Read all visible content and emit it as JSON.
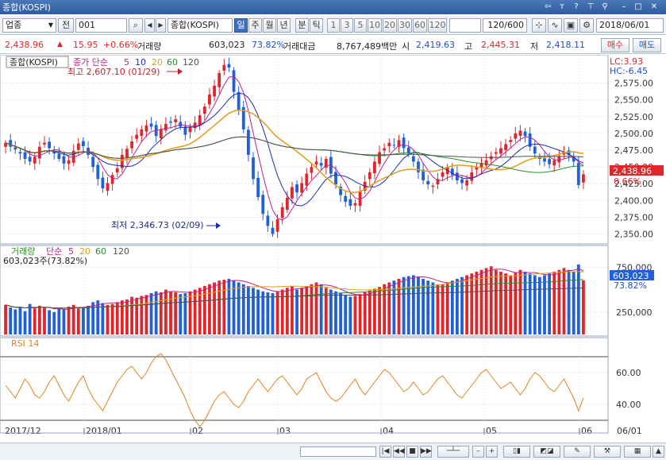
{
  "window": {
    "title": "종합(KOSPI)"
  },
  "toolbar": {
    "market": "업종",
    "prev_label": "전",
    "code": "001",
    "name": "종합(KOSPI)",
    "periods": [
      "일",
      "주",
      "월",
      "년",
      "분",
      "틱"
    ],
    "intervals": [
      "1",
      "3",
      "5",
      "10",
      "20",
      "30",
      "60",
      "120"
    ],
    "count": "120/600",
    "date": "2018/06/01"
  },
  "quote": {
    "price": "2,438.96",
    "change": "15.95",
    "change_pct": "+0.66%",
    "volume_label": "거래량",
    "volume": "603,023",
    "volume_pct": "73.82%",
    "amount_label": "거래대금",
    "amount": "8,767,489백만",
    "open_label": "시",
    "open": "2,419.63",
    "high_label": "고",
    "high": "2,445.31",
    "low_label": "저",
    "low": "2,418.11"
  },
  "side_buttons": {
    "buy": "매수",
    "sell": "매도"
  },
  "price_panel": {
    "name_tag": "종합(KOSPI)",
    "ma_label": "종가 단순",
    "ma_periods": [
      "5",
      "10",
      "20",
      "60",
      "120"
    ],
    "high_note": "최고 2,607.10 (01/29)",
    "low_note": "최저 2,346.73 (02/09)",
    "lc": "LC:3.93",
    "hc": "HC:-6.45",
    "last": "2,438.96",
    "last_pct": "0.66%",
    "y_ticks": [
      "2,575.00",
      "2,550.00",
      "2,525.00",
      "2,500.00",
      "2,475.00",
      "2,450.00",
      "2,425.00",
      "2,400.00",
      "2,375.00",
      "2,350.00"
    ]
  },
  "volume_panel": {
    "label": "거래량",
    "ma_label": "단순",
    "ma_periods": [
      "5",
      "20",
      "60",
      "120"
    ],
    "current": "603,023주(73.82%)",
    "last": "603,023",
    "last_pct": "73.82%",
    "y_ticks": [
      "750,000",
      "250,000"
    ]
  },
  "rsi_panel": {
    "label": "RSI 14",
    "y_ticks": [
      "60.00",
      "40.00"
    ]
  },
  "x_axis": [
    "2017/12",
    "2018/01",
    "02",
    "03",
    "04",
    "05",
    "06",
    "06/01"
  ],
  "colors": {
    "up": "#e0262b",
    "down": "#2060d8",
    "ma5": "#c0208c",
    "ma10": "#1a2fb8",
    "ma20": "#e0a020",
    "ma60": "#2a8a2a",
    "ma120": "#505050",
    "rsi": "#e08020"
  },
  "chart_data": {
    "type": "candlestick",
    "dates_range": [
      "2017/12",
      "2018/06/01"
    ],
    "ylim": [
      2340,
      2610
    ],
    "close": [
      2486,
      2480,
      2476,
      2470,
      2462,
      2458,
      2465,
      2480,
      2486,
      2478,
      2470,
      2462,
      2455,
      2460,
      2474,
      2485,
      2481,
      2468,
      2450,
      2432,
      2418,
      2426,
      2438,
      2448,
      2468,
      2477,
      2488,
      2498,
      2506,
      2512,
      2510,
      2496,
      2506,
      2514,
      2516,
      2521,
      2510,
      2498,
      2509,
      2516,
      2527,
      2540,
      2558,
      2571,
      2590,
      2602,
      2598,
      2562,
      2535,
      2506,
      2468,
      2432,
      2405,
      2380,
      2362,
      2350,
      2372,
      2390,
      2404,
      2420,
      2412,
      2426,
      2440,
      2450,
      2458,
      2452,
      2462,
      2440,
      2424,
      2408,
      2398,
      2392,
      2396,
      2414,
      2428,
      2442,
      2458,
      2472,
      2478,
      2486,
      2482,
      2490,
      2478,
      2470,
      2458,
      2442,
      2430,
      2424,
      2422,
      2432,
      2442,
      2450,
      2438,
      2430,
      2426,
      2430,
      2442,
      2450,
      2456,
      2460,
      2466,
      2472,
      2478,
      2484,
      2490,
      2500,
      2504,
      2496,
      2480,
      2470,
      2462,
      2458,
      2454,
      2460,
      2466,
      2472,
      2468,
      2458,
      2423,
      2439
    ],
    "volume": [
      330,
      300,
      280,
      310,
      260,
      340,
      290,
      320,
      300,
      270,
      250,
      300,
      280,
      310,
      330,
      290,
      300,
      320,
      360,
      380,
      350,
      330,
      340,
      360,
      380,
      390,
      420,
      410,
      430,
      440,
      460,
      480,
      470,
      500,
      480,
      470,
      450,
      460,
      480,
      500,
      520,
      540,
      560,
      580,
      600,
      610,
      620,
      600,
      580,
      560,
      540,
      520,
      500,
      480,
      470,
      460,
      480,
      500,
      520,
      540,
      500,
      520,
      540,
      560,
      580,
      560,
      520,
      500,
      480,
      460,
      440,
      420,
      430,
      450,
      470,
      490,
      510,
      530,
      560,
      580,
      600,
      620,
      640,
      650,
      660,
      640,
      620,
      600,
      580,
      560,
      560,
      580,
      600,
      620,
      640,
      660,
      680,
      700,
      720,
      740,
      760,
      720,
      700,
      680,
      660,
      690,
      720,
      700,
      680,
      660,
      640,
      660,
      680,
      700,
      720,
      740,
      720,
      700,
      780,
      603
    ],
    "rsi": [
      52,
      48,
      44,
      50,
      56,
      52,
      46,
      44,
      48,
      54,
      58,
      52,
      46,
      42,
      48,
      54,
      58,
      50,
      44,
      40,
      36,
      42,
      48,
      54,
      58,
      62,
      64,
      60,
      56,
      60,
      66,
      70,
      72,
      68,
      62,
      56,
      50,
      44,
      36,
      30,
      26,
      30,
      36,
      42,
      46,
      48,
      44,
      40,
      38,
      42,
      48,
      52,
      56,
      52,
      48,
      52,
      56,
      58,
      54,
      50,
      46,
      50,
      56,
      58,
      60,
      54,
      48,
      44,
      42,
      44,
      48,
      52,
      56,
      50,
      46,
      50,
      54,
      58,
      62,
      60,
      56,
      52,
      48,
      50,
      54,
      50,
      46,
      48,
      52,
      56,
      58,
      54,
      50,
      46,
      44,
      48,
      52,
      56,
      60,
      62,
      58,
      54,
      50,
      52,
      54,
      50,
      46,
      50,
      56,
      60,
      58,
      54,
      50,
      48,
      52,
      56,
      50,
      44,
      36,
      44
    ]
  }
}
